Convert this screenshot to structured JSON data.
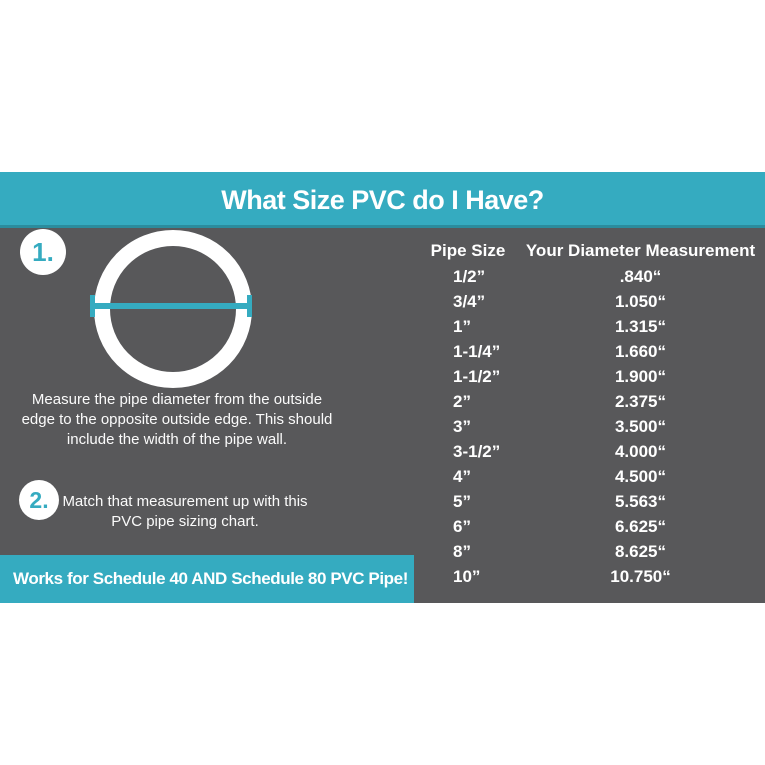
{
  "colors": {
    "teal_accent": "#35abc0",
    "panel_gray": "#58585a",
    "text_white": "#ffffff",
    "page_background": "#ffffff"
  },
  "header": {
    "title": "What Size PVC do I Have?"
  },
  "steps": [
    {
      "number": "1.",
      "text": "Measure the pipe diameter from the outside\nedge to the opposite outside edge. This should\ninclude the width of the pipe wall."
    },
    {
      "number": "2.",
      "text": "Match that measurement up with this\nPVC pipe sizing chart."
    }
  ],
  "diagram": {
    "description": "pipe-cross-section-ring-with-diameter-measurement-line"
  },
  "banner": {
    "text": "Works for Schedule 40 AND Schedule 80 PVC Pipe!"
  },
  "chart_data": {
    "type": "table",
    "columns": [
      "Pipe Size",
      "Your Diameter Measurement"
    ],
    "rows": [
      [
        "1/2”",
        ".840“"
      ],
      [
        "3/4”",
        "1.050“"
      ],
      [
        "1”",
        "1.315“"
      ],
      [
        "1-1/4”",
        "1.660“"
      ],
      [
        "1-1/2”",
        "1.900“"
      ],
      [
        "2”",
        "2.375“"
      ],
      [
        "3”",
        "3.500“"
      ],
      [
        "3-1/2”",
        "4.000“"
      ],
      [
        "4”",
        "4.500“"
      ],
      [
        "5”",
        "5.563“"
      ],
      [
        "6”",
        "6.625“"
      ],
      [
        "8”",
        "8.625“"
      ],
      [
        "10”",
        "10.750“"
      ]
    ]
  }
}
